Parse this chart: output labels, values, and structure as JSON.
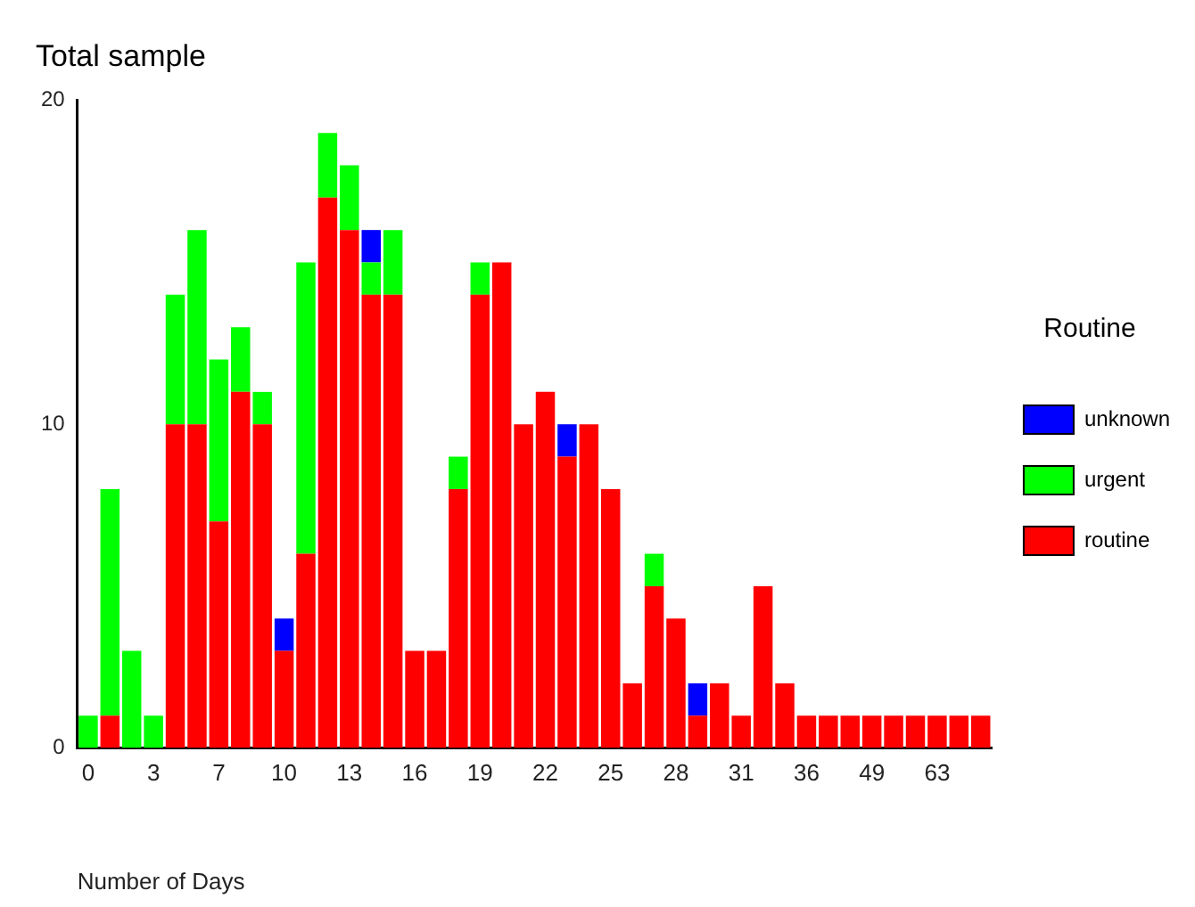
{
  "chart_data": {
    "type": "bar",
    "title": "Total sample",
    "xlabel": "Number of Days",
    "legend_title": "Routine",
    "categories": [
      "0",
      null,
      null,
      "3",
      null,
      null,
      "7",
      null,
      null,
      "10",
      null,
      null,
      "13",
      null,
      null,
      "16",
      null,
      null,
      "19",
      null,
      null,
      "22",
      null,
      null,
      "25",
      null,
      null,
      "28",
      null,
      null,
      "31",
      null,
      null,
      "36",
      null,
      null,
      "49",
      null,
      null,
      "63",
      null,
      null
    ],
    "stacked": true,
    "ylim": [
      0,
      20
    ],
    "yticks": [
      0,
      10,
      20
    ],
    "grid": false,
    "legend": "right",
    "series": [
      {
        "name": "routine",
        "color": "#ff0000",
        "values": [
          0,
          1,
          0,
          0,
          10,
          10,
          7,
          11,
          10,
          3,
          6,
          17,
          16,
          14,
          14,
          3,
          3,
          8,
          14,
          15,
          10,
          11,
          9,
          10,
          8,
          2,
          5,
          4,
          1,
          2,
          1,
          5,
          2,
          1,
          1,
          1,
          1,
          1,
          1,
          1,
          1,
          1
        ]
      },
      {
        "name": "urgent",
        "color": "#00ff00",
        "values": [
          1,
          7,
          3,
          1,
          4,
          6,
          5,
          2,
          1,
          0,
          9,
          2,
          2,
          1,
          2,
          0,
          0,
          1,
          1,
          0,
          0,
          0,
          0,
          0,
          0,
          0,
          1,
          0,
          0,
          0,
          0,
          0,
          0,
          0,
          0,
          0,
          0,
          0,
          0,
          0,
          0,
          0
        ]
      },
      {
        "name": "unknown",
        "color": "#0000ff",
        "values": [
          0,
          0,
          0,
          0,
          0,
          0,
          0,
          0,
          0,
          1,
          0,
          0,
          0,
          1,
          0,
          0,
          0,
          0,
          0,
          0,
          0,
          0,
          1,
          0,
          0,
          0,
          0,
          0,
          1,
          0,
          0,
          0,
          0,
          0,
          0,
          0,
          0,
          0,
          0,
          0,
          0,
          0
        ]
      }
    ]
  }
}
